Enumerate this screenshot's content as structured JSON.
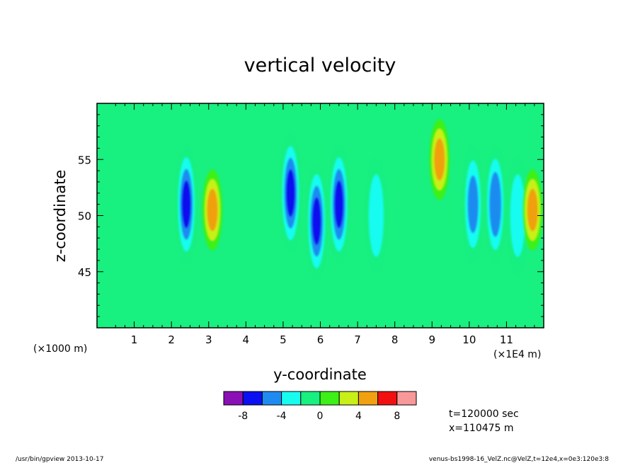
{
  "chart_data": {
    "type": "heatmap",
    "title": "vertical velocity",
    "xlabel": "y-coordinate",
    "ylabel": "z-coordinate",
    "x_scale_label": "(×1000 m)",
    "x_unit_label": "(×1E4 m)",
    "xlim": [
      0,
      12
    ],
    "ylim": [
      40,
      60
    ],
    "x_ticks": [
      "1",
      "2",
      "3",
      "4",
      "5",
      "6",
      "7",
      "8",
      "9",
      "10",
      "11"
    ],
    "y_ticks": [
      "45",
      "50",
      "55"
    ],
    "colorbar": {
      "levels": [
        "-8",
        "-4",
        "0",
        "4",
        "8"
      ],
      "colors": [
        "#8a0fb5",
        "#0a10f0",
        "#1f8bf0",
        "#18fcf0",
        "#18f080",
        "#3cf018",
        "#c8f018",
        "#f0a010",
        "#f01010",
        "#f89898"
      ],
      "bin_edges": [
        -10,
        -8,
        -6,
        -4,
        -2,
        0,
        2,
        4,
        6,
        8,
        10
      ]
    },
    "grid": false,
    "notes": {
      "time": "t=120000 sec",
      "position": "x=110475 m"
    },
    "features": [
      {
        "y": 2.4,
        "z": 51.0,
        "value": -8
      },
      {
        "y": 3.1,
        "z": 50.5,
        "value": 6
      },
      {
        "y": 5.2,
        "z": 52.0,
        "value": -8
      },
      {
        "y": 5.9,
        "z": 49.5,
        "value": -8
      },
      {
        "y": 6.5,
        "z": 51.0,
        "value": -8
      },
      {
        "y": 7.5,
        "z": 50.0,
        "value": -5
      },
      {
        "y": 9.2,
        "z": 55.0,
        "value": 6
      },
      {
        "y": 10.1,
        "z": 51.0,
        "value": -6
      },
      {
        "y": 10.7,
        "z": 51.0,
        "value": -7
      },
      {
        "y": 11.3,
        "z": 50.0,
        "value": -5
      },
      {
        "y": 11.7,
        "z": 50.5,
        "value": 6
      }
    ]
  },
  "footer": {
    "left": "/usr/bin/gpview   2013-10-17",
    "right": "venus-bs1998-16_VelZ.nc@VelZ,t=12e4,x=0e3:120e3:8"
  }
}
